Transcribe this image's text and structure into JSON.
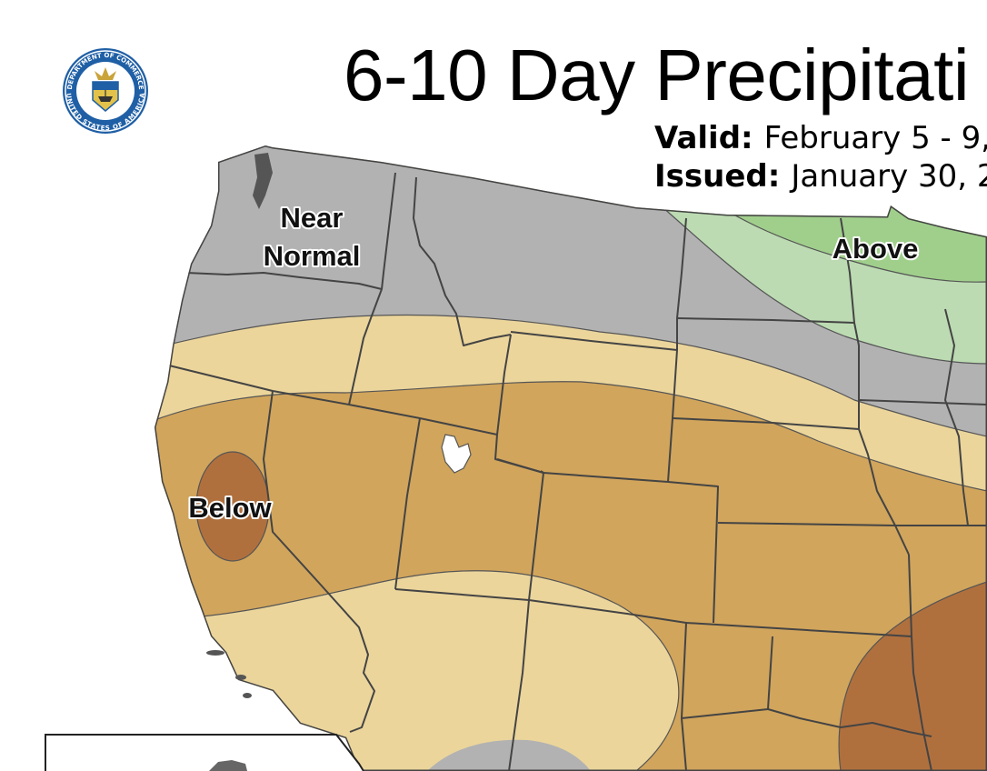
{
  "title": "6-10 Day Precipitati",
  "valid": {
    "label": "Valid:",
    "value": "February 5 - 9,"
  },
  "issued": {
    "label": "Issued:",
    "value": "January 30, 2"
  },
  "seal": {
    "top_text": "DEPARTMENT OF COMMERCE",
    "bottom_text": "UNITED STATES OF AMERICA"
  },
  "regions": {
    "near_normal_line1": "Near",
    "near_normal_line2": "Normal",
    "above": "Above",
    "below": "Below"
  },
  "colors": {
    "near_normal": "#b2b2b2",
    "above_light": "#bcdbb2",
    "above_medium": "#a0cf8c",
    "below_light": "#ebd59b",
    "below_medium": "#d1a55c",
    "below_dark": "#b0703e",
    "boundaries": "#444444"
  }
}
